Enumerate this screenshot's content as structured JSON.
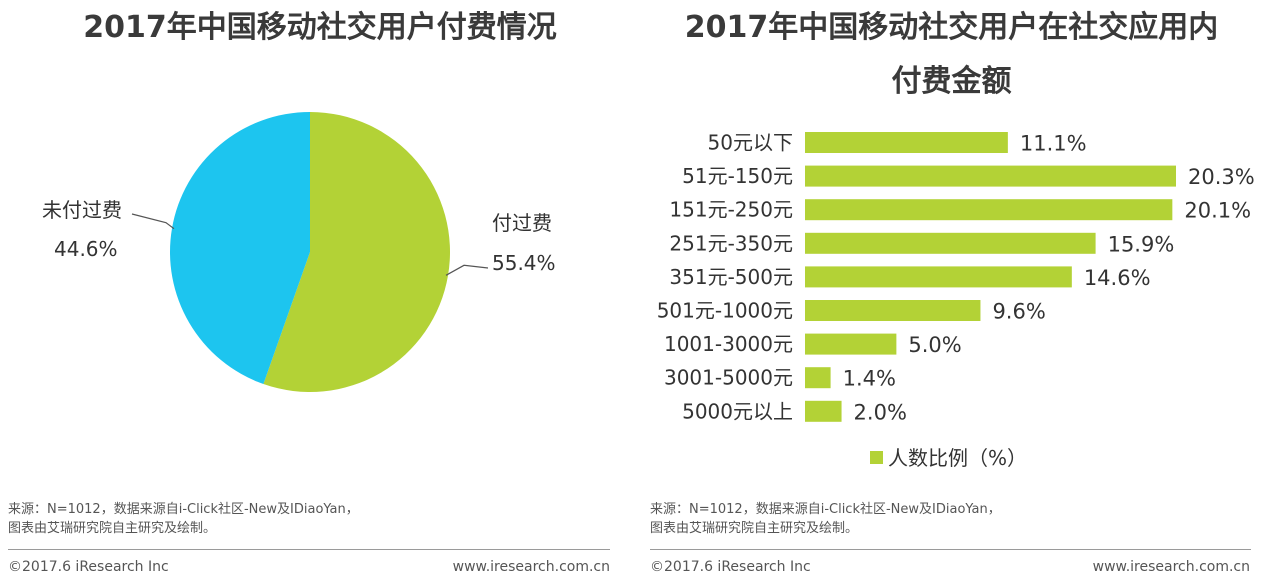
{
  "pie_title": "2017年中国移动社交用户付费情况",
  "bar_title_line1": "2017年中国移动社交用户在社交应用内",
  "bar_title_line2": "付费金额",
  "colors": {
    "green": "#b3d236",
    "blue": "#1dc5ef",
    "text": "#333333",
    "title": "#3a3a3a"
  },
  "chart_data": [
    {
      "type": "pie",
      "title": "2017年中国移动社交用户付费情况",
      "slices": [
        {
          "label": "付过费",
          "value": 55.4,
          "value_label": "55.4%",
          "color": "#b3d236"
        },
        {
          "label": "未付过费",
          "value": 44.6,
          "value_label": "44.6%",
          "color": "#1dc5ef"
        }
      ]
    },
    {
      "type": "bar",
      "orientation": "horizontal",
      "title": "2017年中国移动社交用户在社交应用内付费金额",
      "categories": [
        "50元以下",
        "51元-150元",
        "151元-250元",
        "251元-350元",
        "351元-500元",
        "501元-1000元",
        "1001-3000元",
        "3001-5000元",
        "5000元以上"
      ],
      "values": [
        11.1,
        20.3,
        20.1,
        15.9,
        14.6,
        9.6,
        5.0,
        1.4,
        2.0
      ],
      "value_labels": [
        "11.1%",
        "20.3%",
        "20.1%",
        "15.9%",
        "14.6%",
        "9.6%",
        "5.0%",
        "1.4%",
        "2.0%"
      ],
      "legend": "人数比例（%）",
      "legend_position": "bottom",
      "color": "#b3d236",
      "xlim": [
        0,
        20.3
      ]
    }
  ],
  "footer_left": {
    "source_line1": "来源：N=1012，数据来源自i-Click社区-New及IDiaoYan，",
    "source_line2": "图表由艾瑞研究院自主研究及绘制。",
    "copyright": "©2017.6 iResearch Inc",
    "website": "www.iresearch.com.cn"
  },
  "footer_right": {
    "source_line1": "来源：N=1012，数据来源自i-Click社区-New及IDiaoYan，",
    "source_line2": "图表由艾瑞研究院自主研究及绘制。",
    "copyright": "©2017.6 iResearch Inc",
    "website": "www.iresearch.com.cn"
  }
}
